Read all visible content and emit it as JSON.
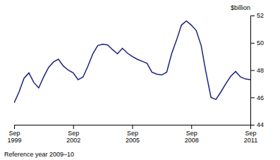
{
  "chart_data": {
    "type": "line",
    "title": "",
    "ylabel": "$billion",
    "annotations": [
      "Reference year 2009–10"
    ],
    "color": "#1a237e",
    "grid": false,
    "categories": [
      "Sep\n1999",
      null,
      null,
      null,
      null,
      null,
      null,
      null,
      null,
      null,
      null,
      null,
      "Sep\n2002",
      null,
      null,
      null,
      null,
      null,
      null,
      null,
      null,
      null,
      null,
      null,
      "Sep\n2005",
      null,
      null,
      null,
      null,
      null,
      null,
      null,
      null,
      null,
      null,
      null,
      "Sep\n2008",
      null,
      null,
      null,
      null,
      null,
      null,
      null,
      null,
      null,
      null,
      null,
      "Sep\n2011"
    ],
    "values": [
      45.6,
      46.4,
      47.4,
      47.8,
      47.1,
      46.7,
      47.5,
      48.2,
      48.6,
      48.8,
      48.3,
      48.0,
      47.8,
      47.3,
      47.5,
      48.3,
      49.2,
      49.8,
      49.9,
      49.85,
      49.5,
      49.2,
      49.6,
      49.25,
      49.0,
      48.8,
      48.65,
      48.5,
      47.85,
      47.7,
      47.65,
      47.85,
      49.2,
      50.2,
      51.3,
      51.6,
      51.3,
      50.9,
      49.8,
      47.8,
      46.0,
      45.85,
      46.4,
      47.0,
      47.55,
      47.9,
      47.5,
      47.35,
      47.3
    ],
    "ylim": [
      44,
      52
    ],
    "yticks": [
      44,
      46,
      48,
      50,
      52
    ]
  }
}
